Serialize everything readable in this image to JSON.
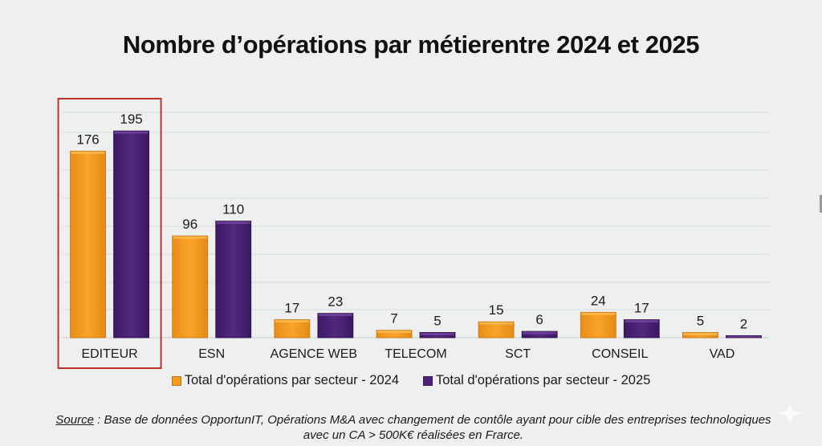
{
  "title": "Nombre d’opérations par métierentre 2024 et 2025",
  "chart_data": {
    "type": "bar",
    "title": "Nombre d’opérations par métierentre 2024 et 2025",
    "xlabel": "",
    "ylabel": "",
    "categories": [
      "EDITEUR",
      "ESN",
      "AGENCE WEB",
      "TELECOM",
      "SCT",
      "CONSEIL",
      "VAD"
    ],
    "series": [
      {
        "name": "Total d'opérations par secteur - 2024",
        "color": "#f59d1e",
        "values": [
          176,
          96,
          17,
          7,
          15,
          24,
          5
        ]
      },
      {
        "name": "Total d'opérations par secteur - 2025",
        "color": "#4b2277",
        "values": [
          195,
          110,
          23,
          5,
          6,
          17,
          2
        ]
      }
    ],
    "ylim": [
      0,
      200
    ],
    "grid": true,
    "y_axis_visible": false,
    "data_labels": true,
    "legend_position": "bottom",
    "highlighted_category": "EDITEUR",
    "highlight_color": "#c0302e"
  },
  "legend": [
    {
      "label": "Total d'opérations par secteur - 2024",
      "color": "#f59d1e"
    },
    {
      "label": "Total d'opérations par secteur - 2025",
      "color": "#4b2277"
    }
  ],
  "source": {
    "label": "Source",
    "separator": " : ",
    "text": "Base de données OpportunIT, Opérations M&A avec changement de contôle ayant pour cible des entreprises technologiques avec un CA > 500K€ réalisées en Frarce."
  },
  "icons": {
    "watermark": "sparkle-icon"
  }
}
